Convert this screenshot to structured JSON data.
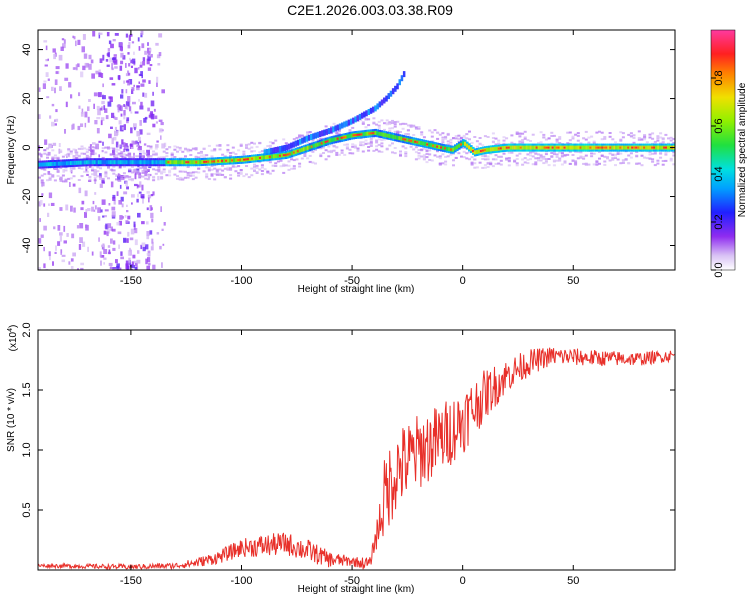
{
  "title": "C2E1.2026.003.03.38.R09",
  "chart_data": [
    {
      "type": "heatmap",
      "title": "C2E1.2026.003.03.38.R09",
      "xlabel": "Height of straight line (km)",
      "ylabel": "Frequency (Hz)",
      "xlim": [
        -192,
        96
      ],
      "ylim": [
        -50,
        48
      ],
      "xticks": [
        -150,
        -100,
        -50,
        0,
        50
      ],
      "yticks": [
        40,
        20,
        0,
        -20,
        -40
      ],
      "xtick_labels": [
        "-150",
        "-100",
        "-50",
        "0",
        "50"
      ],
      "ytick_labels": [
        "40",
        "20",
        "0",
        "-20",
        "-40"
      ],
      "ridge": {
        "x": [
          -192,
          -170,
          -150,
          -135,
          -120,
          -100,
          -90,
          -80,
          -70,
          -60,
          -50,
          -40,
          -30,
          -20,
          -10,
          -5,
          0,
          5,
          10,
          20,
          30,
          50,
          70,
          96
        ],
        "y": [
          -7,
          -6,
          -6,
          -6,
          -6,
          -5,
          -4,
          -3,
          0,
          3,
          5,
          6,
          4,
          2,
          0,
          -1,
          2,
          -2,
          -1,
          0,
          0,
          0,
          0,
          0
        ]
      },
      "upper_ridge": {
        "x": [
          -90,
          -80,
          -70,
          -60,
          -50,
          -40,
          -35,
          -30,
          -27
        ],
        "y": [
          -2,
          0,
          4,
          7,
          11,
          16,
          20,
          25,
          30
        ]
      },
      "colorbar": {
        "label": "Normalized spectral amplitude",
        "ticks": [
          0.0,
          0.2,
          0.4,
          0.6,
          0.8
        ],
        "tick_labels": [
          "0.0",
          "0.2",
          "0.4",
          "0.6",
          "0.8"
        ],
        "range": [
          0,
          1
        ]
      },
      "noise_region_x": [
        -192,
        -135
      ]
    },
    {
      "type": "line",
      "xlabel": "Height of straight line (km)",
      "ylabel": "SNR (10 * v/v)",
      "y_multiplier": "(x10",
      "y_multiplier_exp": "4",
      "y_multiplier_close": ")",
      "xlim": [
        -192,
        96
      ],
      "ylim": [
        0,
        2.0
      ],
      "xticks": [
        -150,
        -100,
        -50,
        0,
        50
      ],
      "yticks": [
        2.0,
        1.5,
        1.0,
        0.5
      ],
      "xtick_labels": [
        "-150",
        "-100",
        "-50",
        "0",
        "50"
      ],
      "ytick_labels": [
        "2.0",
        "1.5",
        "1.0",
        "0.5"
      ],
      "series": [
        {
          "name": "SNR",
          "color": "#e8302a",
          "envelope_x": [
            -192,
            -150,
            -130,
            -120,
            -110,
            -100,
            -90,
            -80,
            -70,
            -60,
            -50,
            -42,
            -38,
            -35,
            -30,
            -20,
            -10,
            0,
            10,
            20,
            30,
            40,
            60,
            80,
            96
          ],
          "envelope_y": [
            0.04,
            0.03,
            0.04,
            0.07,
            0.12,
            0.2,
            0.22,
            0.24,
            0.18,
            0.1,
            0.08,
            0.06,
            0.4,
            0.7,
            0.9,
            1.05,
            1.15,
            1.3,
            1.5,
            1.65,
            1.75,
            1.8,
            1.78,
            1.77,
            1.8
          ],
          "noise_amp_x": [
            -192,
            -130,
            -110,
            -90,
            -70,
            -50,
            -40,
            -35,
            -20,
            0,
            20,
            40,
            96
          ],
          "noise_amp_y": [
            0.02,
            0.03,
            0.07,
            0.12,
            0.12,
            0.05,
            0.08,
            0.45,
            0.4,
            0.35,
            0.18,
            0.1,
            0.06
          ]
        }
      ]
    }
  ]
}
